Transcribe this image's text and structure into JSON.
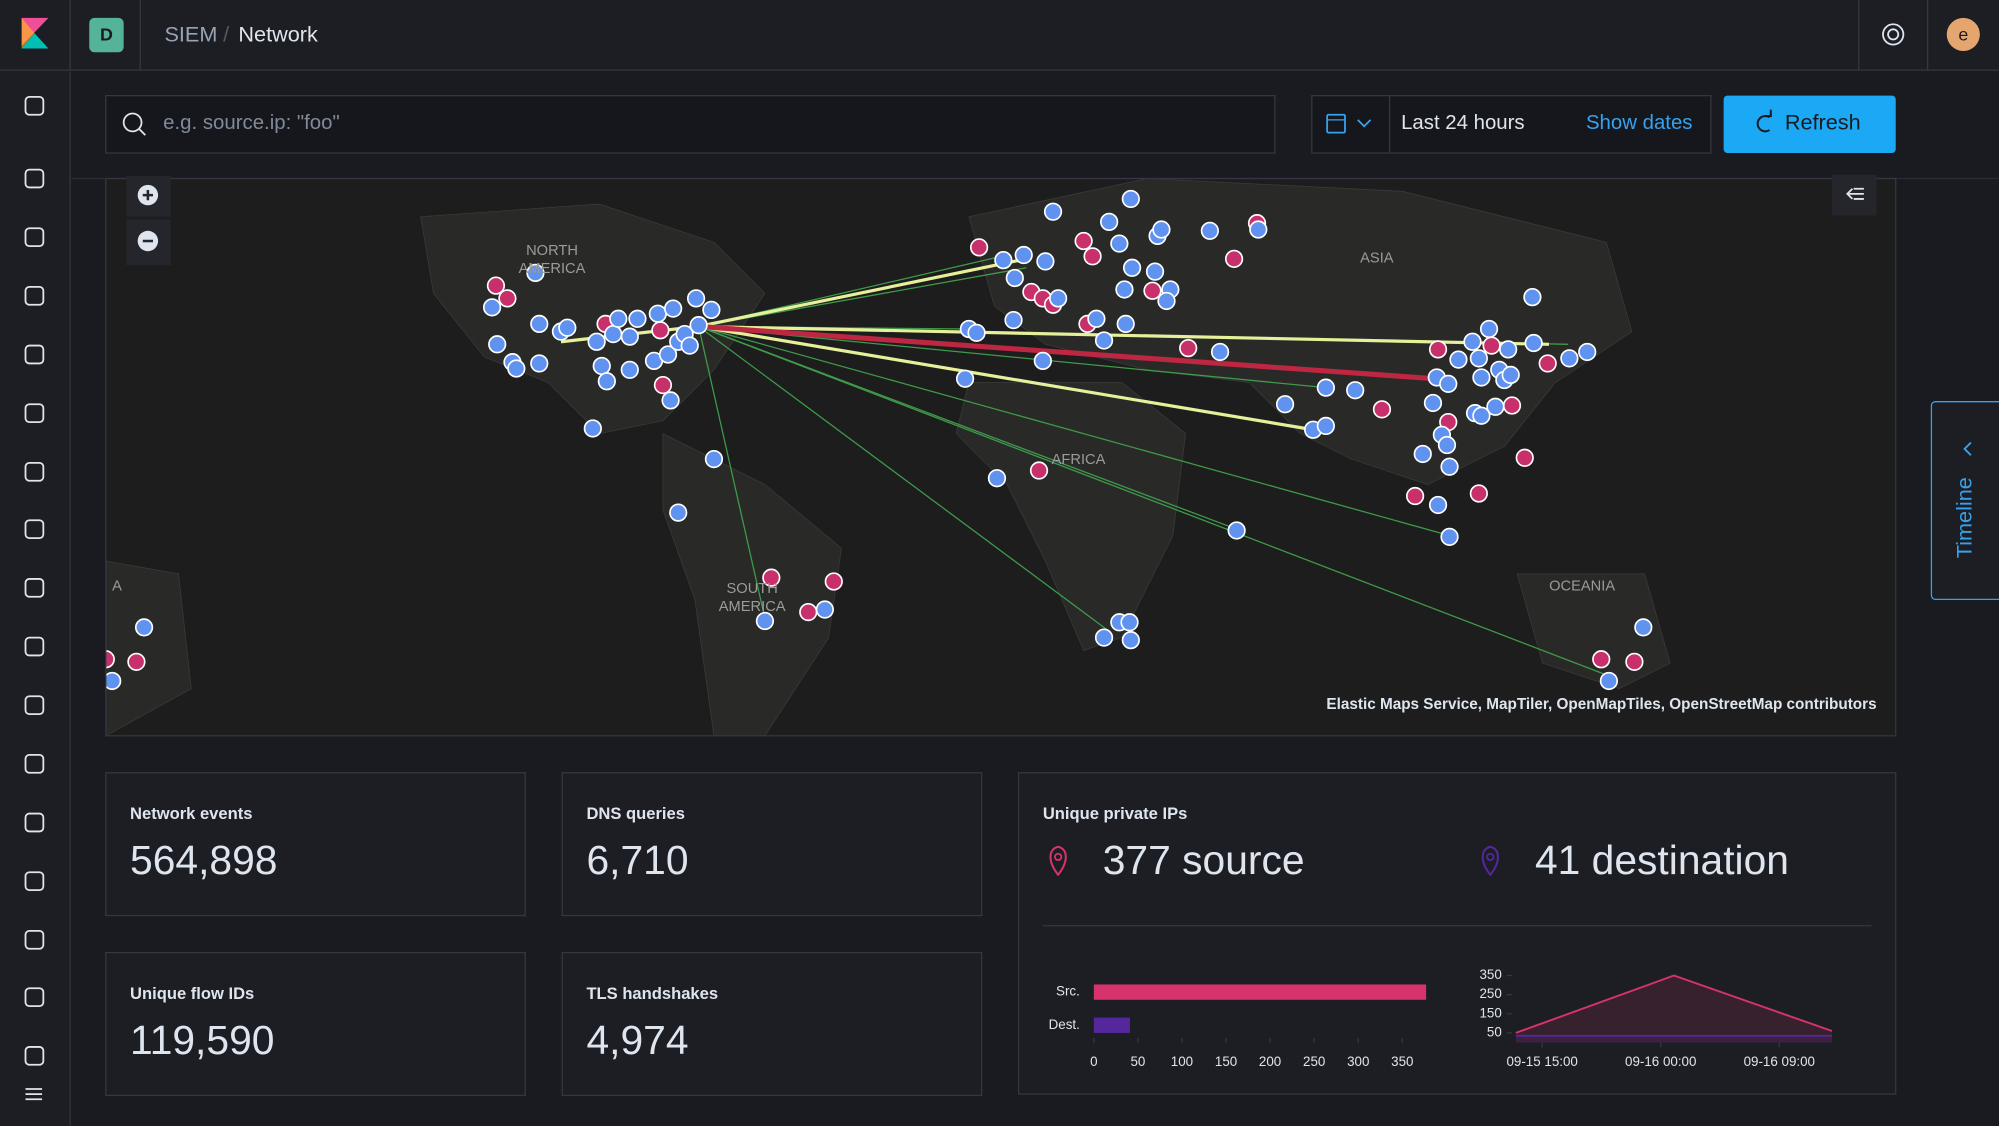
{
  "header": {
    "badge": "D",
    "breadcrumbs": [
      "SIEM",
      "Network"
    ],
    "avatar": "e"
  },
  "search": {
    "placeholder": "e.g. source.ip: \"foo\"",
    "time_range": "Last 24 hours",
    "show_dates": "Show dates",
    "refresh": "Refresh"
  },
  "map": {
    "labels": [
      {
        "lines": [
          "NORTH",
          "AMERICA"
        ]
      },
      {
        "lines": [
          "ASIA"
        ]
      },
      {
        "lines": [
          "AFRICA"
        ]
      },
      {
        "lines": [
          "SOUTH",
          "AMERICA"
        ]
      },
      {
        "lines": [
          "OCEANIA"
        ]
      },
      {
        "lines": [
          "A"
        ]
      }
    ],
    "attribution": "Elastic Maps Service, MapTiler, OpenMapTiles, OpenStreetMap contributors"
  },
  "timeline": "Timeline",
  "stats": [
    {
      "title": "Network events",
      "value": "564,898"
    },
    {
      "title": "DNS queries",
      "value": "6,710"
    },
    {
      "title": "Unique flow IDs",
      "value": "119,590"
    },
    {
      "title": "TLS handshakes",
      "value": "4,974"
    }
  ],
  "unique_ips": {
    "title": "Unique private IPs",
    "source": "377 source",
    "destination": "41 destination"
  },
  "chart_data": [
    {
      "type": "bar",
      "orientation": "horizontal",
      "categories": [
        "Src.",
        "Dest."
      ],
      "values": [
        377,
        41
      ],
      "colors": [
        "#d6336c",
        "#54279f"
      ],
      "xlim": [
        0,
        380
      ],
      "xticks": [
        0,
        50,
        100,
        150,
        200,
        250,
        300,
        350
      ]
    },
    {
      "type": "area",
      "x": [
        "09-15 13:00",
        "09-16 01:00",
        "09-16 13:00"
      ],
      "series": [
        {
          "color": "#d6336c",
          "values": [
            50,
            350,
            60
          ]
        },
        {
          "color": "#54279f",
          "values": [
            35,
            35,
            35
          ]
        }
      ],
      "ylim": [
        0,
        365
      ],
      "yticks": [
        50,
        150,
        250,
        350
      ],
      "xticks": [
        "09-15 15:00",
        "09-16 00:00",
        "09-16 09:00"
      ]
    }
  ]
}
